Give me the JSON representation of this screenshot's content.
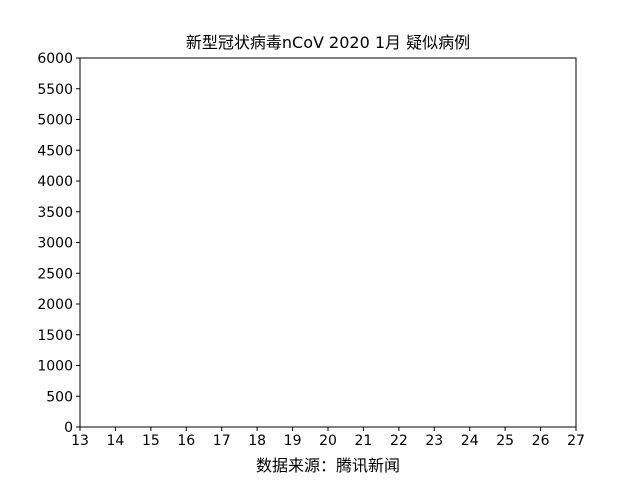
{
  "chart_data": {
    "type": "line",
    "title": "新型冠状病毒nCoV 2020 1月 疑似病例",
    "xlabel": "数据来源：腾讯新闻",
    "ylabel": "",
    "xlim": [
      13,
      27
    ],
    "ylim": [
      0,
      6000
    ],
    "xticks": [
      "13",
      "14",
      "15",
      "16",
      "17",
      "18",
      "19",
      "20",
      "21",
      "22",
      "23",
      "24",
      "25",
      "26",
      "27"
    ],
    "yticks": [
      "0",
      "500",
      "1000",
      "1500",
      "2000",
      "2500",
      "3000",
      "3500",
      "4000",
      "4500",
      "5000",
      "5500",
      "6000"
    ],
    "series": [],
    "grid": false
  }
}
